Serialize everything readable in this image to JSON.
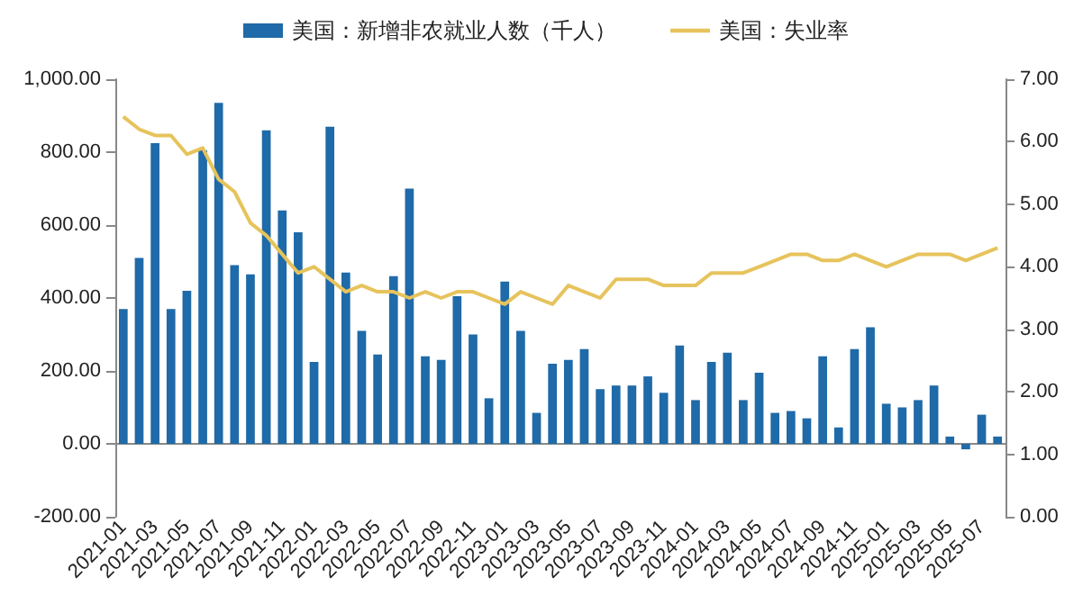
{
  "chart_data": {
    "type": "bar",
    "categories": [
      "2021-01",
      null,
      "2021-03",
      null,
      "2021-05",
      null,
      "2021-07",
      null,
      "2021-09",
      null,
      "2021-11",
      null,
      "2022-01",
      null,
      "2022-03",
      null,
      "2022-05",
      null,
      "2022-07",
      null,
      "2022-09",
      null,
      "2022-11",
      null,
      "2023-01",
      null,
      "2023-03",
      null,
      "2023-05",
      null,
      "2023-07",
      null,
      "2023-09",
      null,
      "2023-11",
      null,
      "2024-01",
      null,
      "2024-03",
      null,
      "2024-05",
      null,
      "2024-07",
      null,
      "2024-09",
      null,
      "2024-11",
      null,
      "2025-01",
      null,
      "2025-03",
      null,
      "2025-05",
      null,
      "2025-07",
      null
    ],
    "series": [
      {
        "name": "美国：新增非农就业人数（千人）",
        "color": "#1f6aa8",
        "values": [
          370,
          510,
          825,
          370,
          420,
          805,
          935,
          490,
          465,
          860,
          640,
          580,
          225,
          870,
          470,
          310,
          245,
          460,
          700,
          240,
          230,
          405,
          300,
          125,
          445,
          310,
          85,
          220,
          230,
          260,
          150,
          160,
          160,
          185,
          140,
          270,
          120,
          225,
          250,
          120,
          195,
          85,
          90,
          70,
          240,
          45,
          260,
          320,
          110,
          100,
          120,
          160,
          20,
          -15,
          80,
          20
        ]
      },
      {
        "name": "美国：失业率",
        "type": "line",
        "axis": "y2",
        "color": "#e6c35c",
        "values": [
          6.4,
          6.2,
          6.1,
          6.1,
          5.8,
          5.9,
          5.4,
          5.2,
          4.7,
          4.5,
          4.2,
          3.9,
          4.0,
          3.8,
          3.6,
          3.7,
          3.6,
          3.6,
          3.5,
          3.6,
          3.5,
          3.6,
          3.6,
          3.5,
          3.4,
          3.6,
          3.5,
          3.4,
          3.7,
          3.6,
          3.5,
          3.8,
          3.8,
          3.8,
          3.7,
          3.7,
          3.7,
          3.9,
          3.9,
          3.9,
          4.0,
          4.1,
          4.2,
          4.2,
          4.1,
          4.1,
          4.2,
          4.1,
          4.0,
          4.1,
          4.2,
          4.2,
          4.2,
          4.1,
          4.2,
          4.3
        ]
      }
    ],
    "ylim": [
      -200,
      1000
    ],
    "yticks": [
      {
        "value": -200,
        "label": "-200.00"
      },
      {
        "value": 0,
        "label": "0.00"
      },
      {
        "value": 200,
        "label": "200.00"
      },
      {
        "value": 400,
        "label": "400.00"
      },
      {
        "value": 600,
        "label": "600.00"
      },
      {
        "value": 800,
        "label": "800.00"
      },
      {
        "value": 1000,
        "label": "1,000.00"
      }
    ],
    "y2lim": [
      0,
      7
    ],
    "y2ticks": [
      {
        "value": 0,
        "label": "0.00"
      },
      {
        "value": 1,
        "label": "1.00"
      },
      {
        "value": 2,
        "label": "2.00"
      },
      {
        "value": 3,
        "label": "3.00"
      },
      {
        "value": 4,
        "label": "4.00"
      },
      {
        "value": 5,
        "label": "5.00"
      },
      {
        "value": 6,
        "label": "6.00"
      },
      {
        "value": 7,
        "label": "7.00"
      }
    ],
    "legend": "top",
    "marker": "none"
  }
}
